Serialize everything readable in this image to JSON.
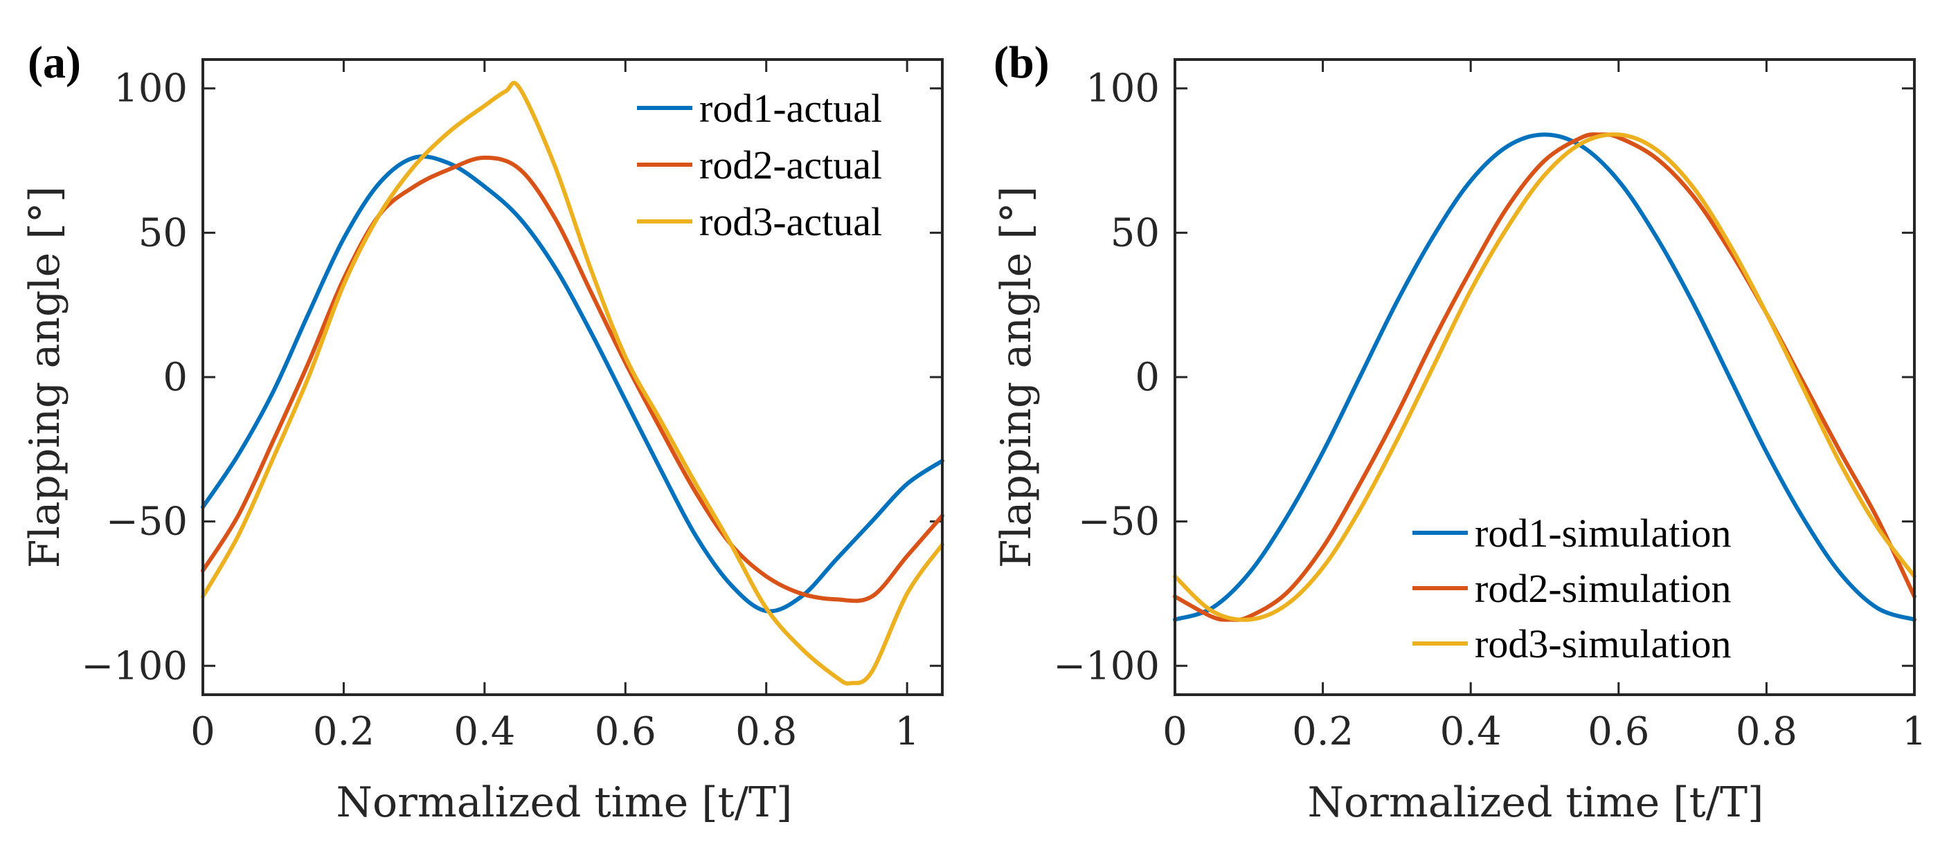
{
  "chart_data": [
    {
      "type": "line",
      "panel_label": "(a)",
      "xlabel": "Normalized time [t/T]",
      "ylabel": "Flapping angle [°]",
      "xlim": [
        0,
        1.05
      ],
      "ylim": [
        -110,
        110
      ],
      "xticks": [
        0,
        0.2,
        0.4,
        0.6,
        0.8,
        1
      ],
      "xtick_labels": [
        "0",
        "0.2",
        "0.4",
        "0.6",
        "0.8",
        "1"
      ],
      "yticks": [
        -100,
        -50,
        0,
        50,
        100
      ],
      "ytick_labels": [
        "−100",
        "−50",
        "0",
        "50",
        "100"
      ],
      "legend_position": "top-right",
      "series": [
        {
          "name": "rod1-actual",
          "color": "#0072BD",
          "x": [
            0,
            0.05,
            0.1,
            0.15,
            0.2,
            0.25,
            0.3,
            0.35,
            0.4,
            0.45,
            0.5,
            0.55,
            0.6,
            0.65,
            0.7,
            0.75,
            0.8,
            0.85,
            0.9,
            0.95,
            1.0,
            1.05
          ],
          "y": [
            -45,
            -27,
            -5,
            22,
            48,
            67,
            76,
            74,
            66,
            55,
            38,
            16,
            -8,
            -32,
            -55,
            -72,
            -81,
            -76,
            -63,
            -50,
            -37,
            -29
          ]
        },
        {
          "name": "rod2-actual",
          "color": "#D95319",
          "x": [
            0,
            0.05,
            0.1,
            0.15,
            0.2,
            0.25,
            0.3,
            0.35,
            0.4,
            0.45,
            0.5,
            0.55,
            0.6,
            0.65,
            0.7,
            0.75,
            0.8,
            0.85,
            0.9,
            0.95,
            1.0,
            1.05
          ],
          "y": [
            -67,
            -48,
            -22,
            5,
            34,
            56,
            66,
            72,
            76,
            72,
            55,
            30,
            5,
            -18,
            -40,
            -58,
            -69,
            -75,
            -77,
            -76,
            -62,
            -48
          ]
        },
        {
          "name": "rod3-actual",
          "color": "#EDB120",
          "x": [
            0,
            0.05,
            0.1,
            0.15,
            0.2,
            0.25,
            0.3,
            0.35,
            0.4,
            0.43,
            0.45,
            0.5,
            0.55,
            0.6,
            0.65,
            0.7,
            0.75,
            0.8,
            0.85,
            0.9,
            0.92,
            0.95,
            1.0,
            1.05
          ],
          "y": [
            -76,
            -55,
            -28,
            0,
            32,
            56,
            73,
            85,
            94,
            99,
            100,
            73,
            38,
            7,
            -15,
            -37,
            -58,
            -80,
            -94,
            -104,
            -106,
            -102,
            -75,
            -58
          ]
        }
      ]
    },
    {
      "type": "line",
      "panel_label": "(b)",
      "xlabel": "Normalized time [t/T]",
      "ylabel": "Flapping angle [°]",
      "xlim": [
        0,
        1
      ],
      "ylim": [
        -110,
        110
      ],
      "xticks": [
        0,
        0.2,
        0.4,
        0.6,
        0.8,
        1
      ],
      "xtick_labels": [
        "0",
        "0.2",
        "0.4",
        "0.6",
        "0.8",
        "1"
      ],
      "yticks": [
        -100,
        -50,
        0,
        50,
        100
      ],
      "ytick_labels": [
        "−100",
        "−50",
        "0",
        "50",
        "100"
      ],
      "legend_position": "bottom-right",
      "series": [
        {
          "name": "rod1-simulation",
          "color": "#0072BD",
          "x": [
            0,
            0.05,
            0.1,
            0.15,
            0.2,
            0.25,
            0.3,
            0.35,
            0.4,
            0.45,
            0.5,
            0.55,
            0.6,
            0.65,
            0.7,
            0.75,
            0.8,
            0.85,
            0.9,
            0.95,
            1.0
          ],
          "y": [
            -84,
            -80,
            -68,
            -49,
            -26,
            0,
            26,
            49,
            68,
            80,
            84,
            80,
            68,
            49,
            26,
            0,
            -26,
            -49,
            -68,
            -80,
            -84
          ]
        },
        {
          "name": "rod2-simulation",
          "color": "#D95319",
          "x": [
            0,
            0.05,
            0.075,
            0.1,
            0.15,
            0.2,
            0.25,
            0.3,
            0.35,
            0.4,
            0.45,
            0.5,
            0.55,
            0.575,
            0.6,
            0.65,
            0.7,
            0.75,
            0.8,
            0.85,
            0.9,
            0.95,
            1.0
          ],
          "y": [
            -76,
            -83,
            -84,
            -83,
            -75,
            -59,
            -37,
            -13,
            13,
            37,
            59,
            75,
            83,
            84,
            83,
            76,
            63,
            44,
            22,
            -2,
            -26,
            -49,
            -76
          ]
        },
        {
          "name": "rod3-simulation",
          "color": "#EDB120",
          "x": [
            0,
            0.05,
            0.1,
            0.15,
            0.2,
            0.25,
            0.3,
            0.35,
            0.4,
            0.45,
            0.5,
            0.55,
            0.6,
            0.65,
            0.7,
            0.75,
            0.8,
            0.85,
            0.9,
            0.95,
            1.0
          ],
          "y": [
            -69,
            -81,
            -84,
            -79,
            -66,
            -46,
            -22,
            4,
            30,
            52,
            70,
            81,
            84,
            79,
            66,
            46,
            22,
            -4,
            -30,
            -52,
            -69
          ]
        }
      ]
    }
  ]
}
